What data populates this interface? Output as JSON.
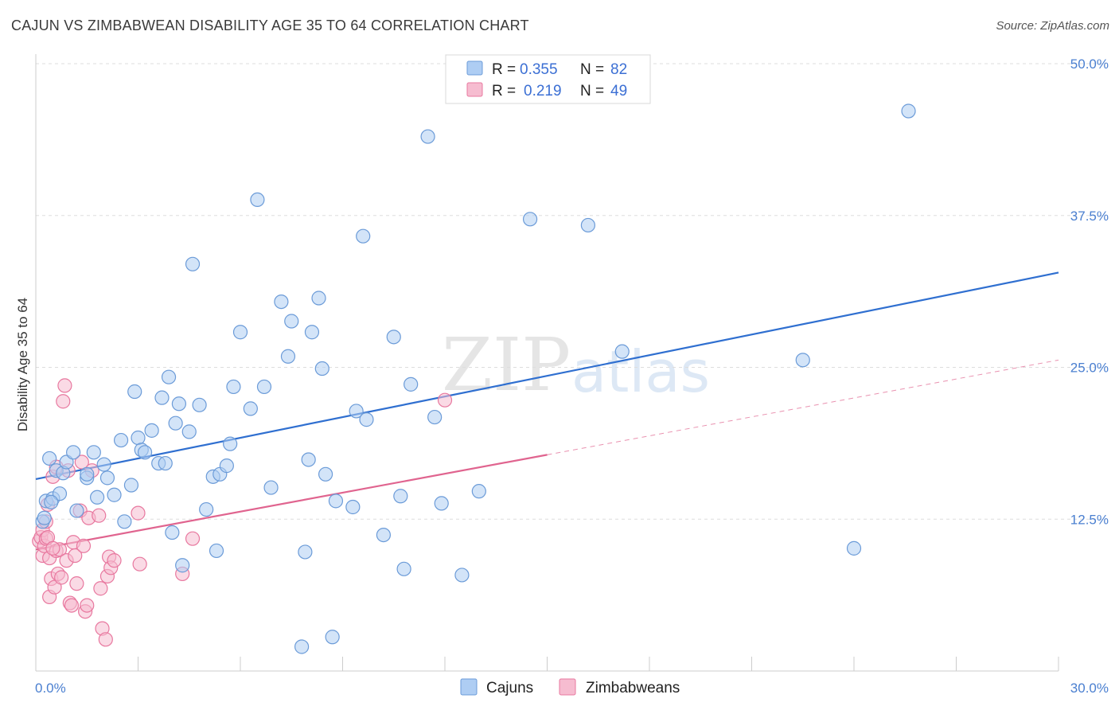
{
  "title": "CAJUN VS ZIMBABWEAN DISABILITY AGE 35 TO 64 CORRELATION CHART",
  "source": "Source: ZipAtlas.com",
  "watermark": {
    "zip": "ZIP",
    "atlas": "atlas"
  },
  "colors": {
    "cajun_fill": "#aecdf3",
    "cajun_stroke": "#6b9bd8",
    "cajun_line": "#2f6fd0",
    "zim_fill": "#f6bcd0",
    "zim_stroke": "#e8789f",
    "zim_line": "#e0648f",
    "grid": "#dddddd",
    "tick_text": "#4a7fd0"
  },
  "legend": {
    "rows": [
      {
        "r_label": "R =",
        "r_value": "0.355",
        "n_label": "N =",
        "n_value": "82"
      },
      {
        "r_label": "R =",
        "r_value": "0.219",
        "n_label": "N =",
        "n_value": "49"
      }
    ]
  },
  "bottom_legend": [
    "Cajuns",
    "Zimbabweans"
  ],
  "chart_data": {
    "type": "scatter",
    "title": "CAJUN VS ZIMBABWEAN DISABILITY AGE 35 TO 64 CORRELATION CHART",
    "xlabel": "",
    "ylabel": "Disability Age 35 to 64",
    "xlim": [
      0,
      30
    ],
    "ylim": [
      0,
      50
    ],
    "x_tick_labels": [
      {
        "value": 0,
        "label": "0.0%"
      },
      {
        "value": 30,
        "label": "30.0%"
      }
    ],
    "y_tick_labels": [
      {
        "value": 12.5,
        "label": "12.5%"
      },
      {
        "value": 25,
        "label": "25.0%"
      },
      {
        "value": 37.5,
        "label": "37.5%"
      },
      {
        "value": 50,
        "label": "50.0%"
      }
    ],
    "grid": true,
    "legend_position": "top-center",
    "series": [
      {
        "name": "Cajuns",
        "r": 0.355,
        "n": 82,
        "trend": {
          "x0": 0,
          "y0": 15.8,
          "x1": 30,
          "y1": 32.8
        },
        "points": [
          [
            0.2,
            12.3
          ],
          [
            0.3,
            14.0
          ],
          [
            0.4,
            17.5
          ],
          [
            0.5,
            14.2
          ],
          [
            0.6,
            16.5
          ],
          [
            0.7,
            14.6
          ],
          [
            0.8,
            16.3
          ],
          [
            0.9,
            17.2
          ],
          [
            1.1,
            18.0
          ],
          [
            1.2,
            13.2
          ],
          [
            1.5,
            15.9
          ],
          [
            1.5,
            16.2
          ],
          [
            1.7,
            18.0
          ],
          [
            1.8,
            14.3
          ],
          [
            2.0,
            17.0
          ],
          [
            2.1,
            15.9
          ],
          [
            2.3,
            14.5
          ],
          [
            2.5,
            19.0
          ],
          [
            2.6,
            12.3
          ],
          [
            2.8,
            15.3
          ],
          [
            2.9,
            23.0
          ],
          [
            3.0,
            19.2
          ],
          [
            3.1,
            18.2
          ],
          [
            3.2,
            18.0
          ],
          [
            3.4,
            19.8
          ],
          [
            3.6,
            17.1
          ],
          [
            3.7,
            22.5
          ],
          [
            3.8,
            17.1
          ],
          [
            3.9,
            24.2
          ],
          [
            4.0,
            11.4
          ],
          [
            4.1,
            20.4
          ],
          [
            4.2,
            22.0
          ],
          [
            4.3,
            8.7
          ],
          [
            4.5,
            19.7
          ],
          [
            4.6,
            33.5
          ],
          [
            4.8,
            21.9
          ],
          [
            5.0,
            13.3
          ],
          [
            5.2,
            16.0
          ],
          [
            5.3,
            9.9
          ],
          [
            5.4,
            16.2
          ],
          [
            5.6,
            16.9
          ],
          [
            5.7,
            18.7
          ],
          [
            5.8,
            23.4
          ],
          [
            6.0,
            27.9
          ],
          [
            6.3,
            21.6
          ],
          [
            6.5,
            38.8
          ],
          [
            6.7,
            23.4
          ],
          [
            6.9,
            15.1
          ],
          [
            7.2,
            30.4
          ],
          [
            7.4,
            25.9
          ],
          [
            7.5,
            28.8
          ],
          [
            7.8,
            2.0
          ],
          [
            7.9,
            9.8
          ],
          [
            8.0,
            17.4
          ],
          [
            8.1,
            27.9
          ],
          [
            8.3,
            30.7
          ],
          [
            8.4,
            24.9
          ],
          [
            8.5,
            16.2
          ],
          [
            8.7,
            2.8
          ],
          [
            8.8,
            14.0
          ],
          [
            9.3,
            13.5
          ],
          [
            9.4,
            21.4
          ],
          [
            9.6,
            35.8
          ],
          [
            9.7,
            20.7
          ],
          [
            10.2,
            11.2
          ],
          [
            10.5,
            27.5
          ],
          [
            10.7,
            14.4
          ],
          [
            10.8,
            8.4
          ],
          [
            11.0,
            23.6
          ],
          [
            11.5,
            44.0
          ],
          [
            11.7,
            20.9
          ],
          [
            11.9,
            13.8
          ],
          [
            12.5,
            7.9
          ],
          [
            13.0,
            14.8
          ],
          [
            14.5,
            37.2
          ],
          [
            16.2,
            36.7
          ],
          [
            17.2,
            26.3
          ],
          [
            22.5,
            25.6
          ],
          [
            24.0,
            10.1
          ],
          [
            25.6,
            46.1
          ],
          [
            0.25,
            12.6
          ],
          [
            0.45,
            13.9
          ]
        ]
      },
      {
        "name": "Zimbabweans",
        "r": 0.219,
        "n": 49,
        "trend": {
          "x0": 0,
          "y0": 10.0,
          "x1": 15,
          "y1": 17.8,
          "dashed_to_x": 30,
          "dashed_to_y": 25.6
        },
        "points": [
          [
            0.1,
            10.7
          ],
          [
            0.15,
            11.0
          ],
          [
            0.2,
            9.5
          ],
          [
            0.2,
            11.6
          ],
          [
            0.25,
            10.3
          ],
          [
            0.3,
            12.3
          ],
          [
            0.3,
            10.9
          ],
          [
            0.35,
            13.7
          ],
          [
            0.4,
            9.3
          ],
          [
            0.4,
            6.1
          ],
          [
            0.45,
            7.6
          ],
          [
            0.5,
            16.0
          ],
          [
            0.55,
            6.9
          ],
          [
            0.6,
            16.8
          ],
          [
            0.6,
            9.9
          ],
          [
            0.65,
            8.0
          ],
          [
            0.7,
            10.0
          ],
          [
            0.75,
            7.7
          ],
          [
            0.8,
            22.2
          ],
          [
            0.85,
            23.5
          ],
          [
            0.9,
            9.1
          ],
          [
            0.95,
            16.5
          ],
          [
            1.0,
            5.6
          ],
          [
            1.05,
            5.4
          ],
          [
            1.1,
            10.6
          ],
          [
            1.15,
            9.5
          ],
          [
            1.2,
            7.2
          ],
          [
            1.3,
            13.2
          ],
          [
            1.35,
            17.2
          ],
          [
            1.4,
            10.3
          ],
          [
            1.45,
            4.9
          ],
          [
            1.5,
            5.4
          ],
          [
            1.55,
            12.6
          ],
          [
            1.65,
            16.5
          ],
          [
            1.85,
            12.8
          ],
          [
            1.9,
            6.8
          ],
          [
            1.95,
            3.5
          ],
          [
            2.05,
            2.6
          ],
          [
            2.1,
            7.8
          ],
          [
            2.15,
            9.4
          ],
          [
            2.2,
            8.5
          ],
          [
            2.3,
            9.1
          ],
          [
            3.05,
            8.8
          ],
          [
            3.0,
            13.0
          ],
          [
            4.3,
            8.0
          ],
          [
            4.6,
            10.9
          ],
          [
            12.0,
            22.3
          ],
          [
            0.35,
            11.0
          ],
          [
            0.5,
            10.1
          ]
        ]
      }
    ]
  }
}
